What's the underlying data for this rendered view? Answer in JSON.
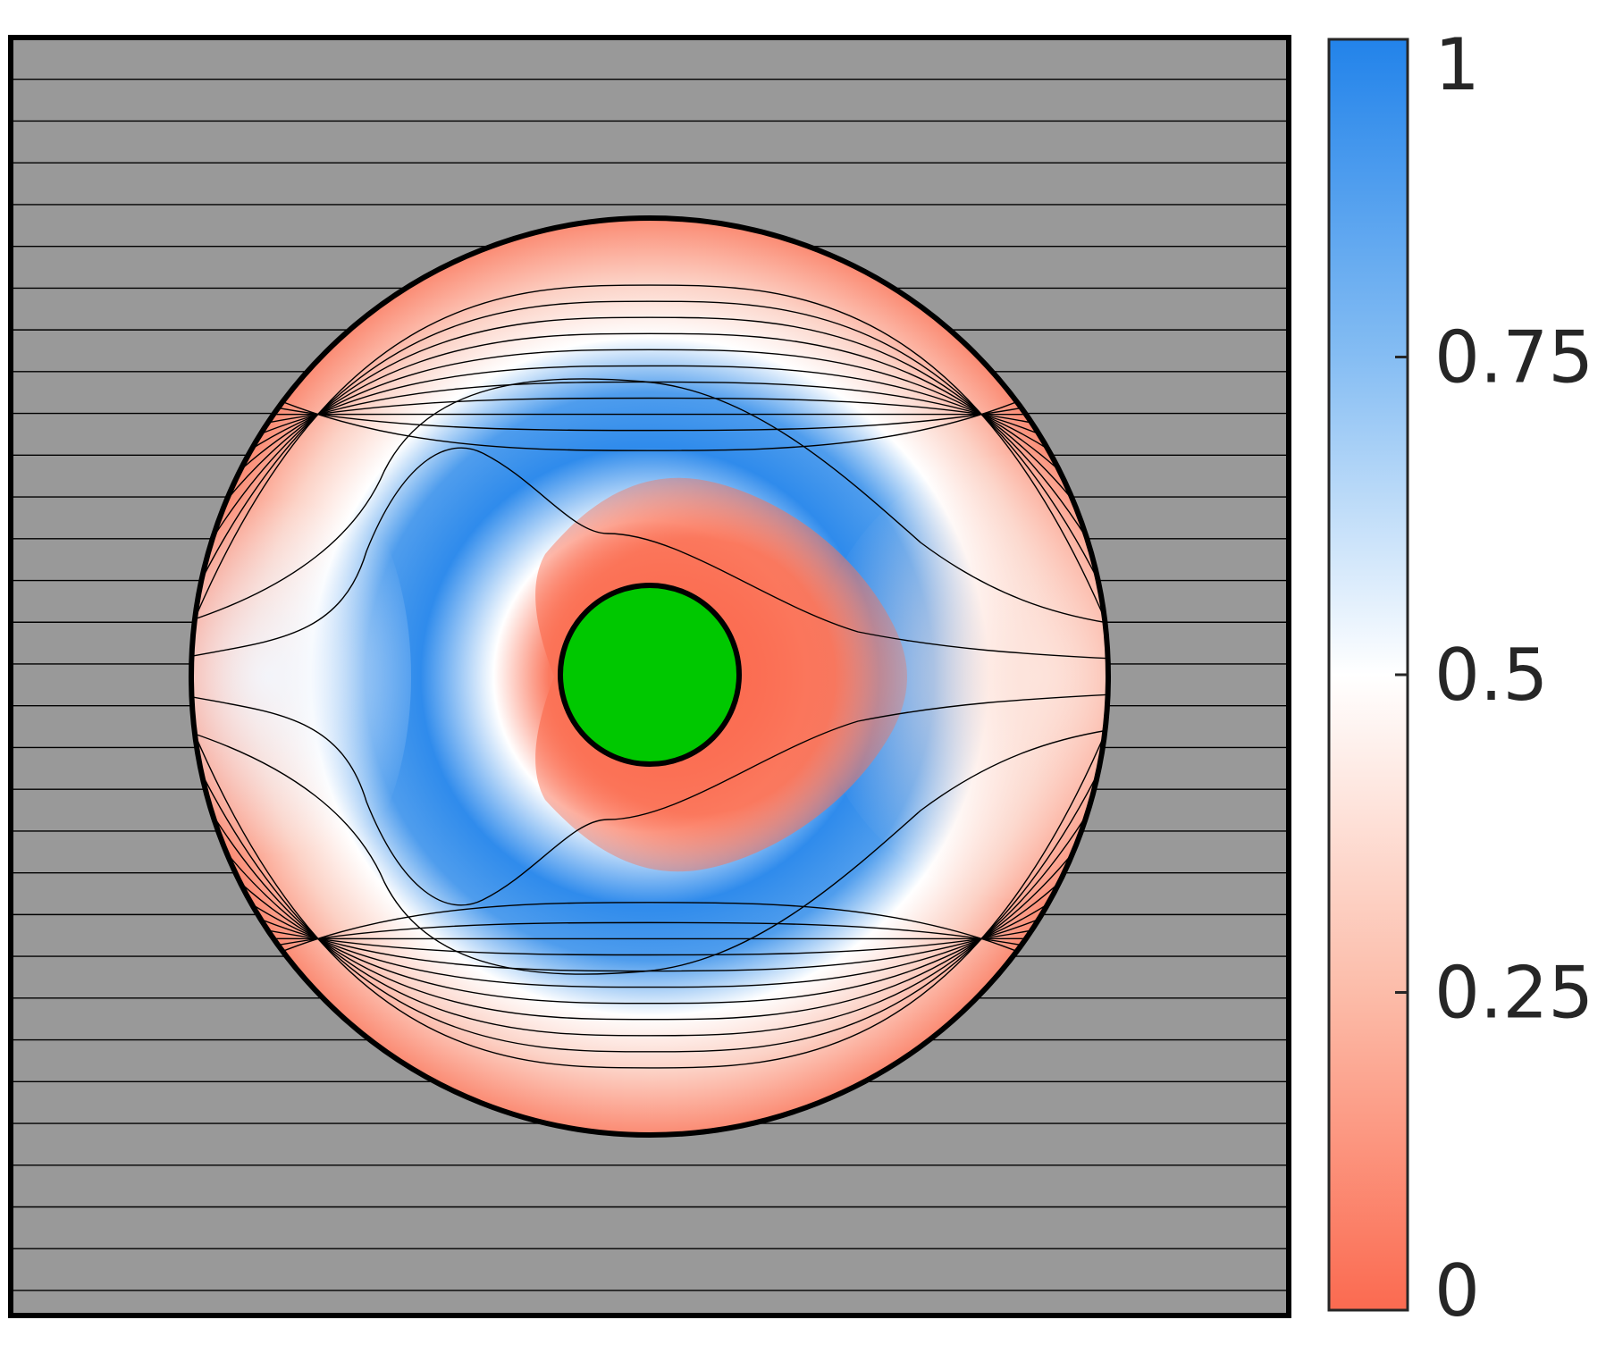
{
  "chart_data": {
    "type": "heatmap",
    "title": "",
    "xlabel": "",
    "ylabel": "",
    "colorbar": {
      "range": [
        0,
        1
      ],
      "ticks": [
        {
          "value": 0,
          "label": "0"
        },
        {
          "value": 0.25,
          "label": "0.25"
        },
        {
          "value": 0.5,
          "label": "0.5"
        },
        {
          "value": 0.75,
          "label": "0.75"
        },
        {
          "value": 1,
          "label": "1"
        }
      ],
      "colormap": [
        {
          "value": 0,
          "color": "#fb6a50"
        },
        {
          "value": 0.25,
          "color": "#fcbca9"
        },
        {
          "value": 0.5,
          "color": "#ffffff"
        },
        {
          "value": 0.75,
          "color": "#85bdf3"
        },
        {
          "value": 1,
          "color": "#2283ea"
        }
      ]
    },
    "background_color": "#999999",
    "inner_obstacle_color": "#00c800",
    "streamline_count_outside": 30,
    "grid": false
  }
}
